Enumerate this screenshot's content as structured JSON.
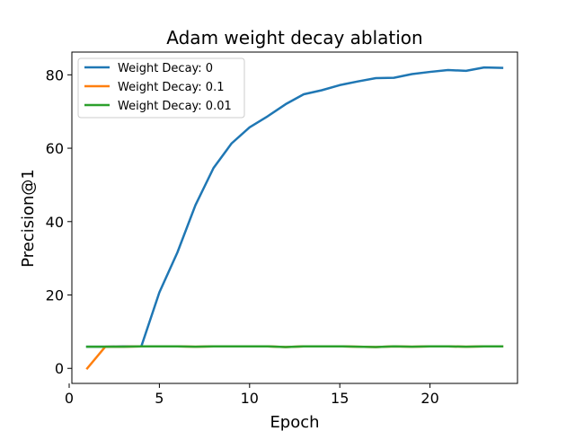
{
  "chart_data": {
    "type": "line",
    "title": "Adam weight decay ablation",
    "xlabel": "Epoch",
    "ylabel": "Precision@1",
    "xlim": [
      0.15,
      24.85
    ],
    "ylim": [
      -4.1,
      86.2
    ],
    "xticks": [
      0,
      5,
      10,
      15,
      20
    ],
    "yticks": [
      0,
      20,
      40,
      60,
      80
    ],
    "grid": false,
    "legend_position": "upper-left",
    "x": [
      1,
      2,
      3,
      4,
      5,
      6,
      7,
      8,
      9,
      10,
      11,
      12,
      13,
      14,
      15,
      16,
      17,
      18,
      19,
      20,
      21,
      22,
      23,
      24
    ],
    "series": [
      {
        "name": "Weight Decay: 0",
        "color": "#1f77b4",
        "values": [
          5.9,
          5.9,
          6.0,
          6.0,
          20.7,
          31.6,
          44.5,
          54.6,
          61.3,
          65.7,
          68.7,
          72.0,
          74.7,
          75.8,
          77.2,
          78.2,
          79.1,
          79.2,
          80.2,
          80.8,
          81.3,
          81.1,
          82.0,
          81.9
        ]
      },
      {
        "name": "Weight Decay: 0.1",
        "color": "#ff7f0e",
        "values": [
          0.0,
          5.9,
          5.9,
          6.0,
          6.0,
          6.0,
          5.9,
          6.0,
          6.0,
          6.0,
          6.0,
          5.8,
          6.0,
          6.0,
          6.0,
          5.9,
          5.8,
          6.0,
          5.9,
          6.0,
          6.0,
          5.9,
          6.0,
          6.0
        ]
      },
      {
        "name": "Weight Decay: 0.01",
        "color": "#2ca02c",
        "values": [
          5.9,
          5.9,
          5.9,
          6.0,
          6.0,
          6.0,
          5.9,
          6.0,
          6.0,
          6.0,
          6.0,
          5.8,
          6.0,
          6.0,
          6.0,
          5.9,
          5.8,
          6.0,
          5.9,
          6.0,
          6.0,
          5.9,
          6.0,
          6.0
        ]
      }
    ]
  }
}
